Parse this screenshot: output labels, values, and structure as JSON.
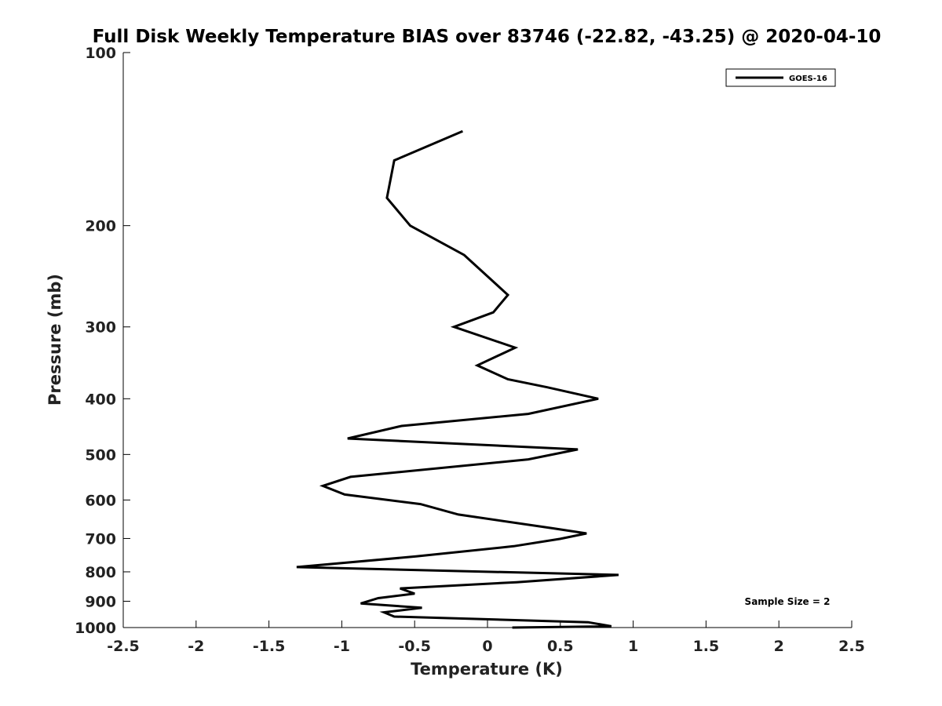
{
  "chart_data": {
    "type": "line",
    "title": "Full Disk Weekly Temperature BIAS over 83746 (-22.82, -43.25) @ 2020-04-10",
    "xlabel": "Temperature (K)",
    "ylabel": "Pressure (mb)",
    "xlim": [
      -2.5,
      2.5
    ],
    "ylim": [
      100,
      1000
    ],
    "y_scale": "log",
    "y_reversed": true,
    "grid": false,
    "legend_position": "top-right",
    "xticks": [
      -2.5,
      -2,
      -1.5,
      -1,
      -0.5,
      0,
      0.5,
      1,
      1.5,
      2,
      2.5
    ],
    "xtick_labels": [
      "-2.5",
      "-2",
      "-1.5",
      "-1",
      "-0.5",
      "0",
      "0.5",
      "1",
      "1.5",
      "2",
      "2.5"
    ],
    "yticks": [
      100,
      200,
      300,
      400,
      500,
      600,
      700,
      800,
      900,
      1000
    ],
    "ytick_labels": [
      "100",
      "200",
      "300",
      "400",
      "500",
      "600",
      "700",
      "800",
      "900",
      "1000"
    ],
    "annotation": "Sample Size = 2",
    "colors": {
      "line": "#000000",
      "axis": "#000000",
      "background": "#ffffff"
    },
    "series": [
      {
        "name": "GOES-16",
        "points": [
          [
            -0.17,
            137
          ],
          [
            -0.64,
            154
          ],
          [
            -0.69,
            179
          ],
          [
            -0.53,
            200
          ],
          [
            -0.16,
            225
          ],
          [
            0.14,
            264
          ],
          [
            0.04,
            283
          ],
          [
            -0.23,
            300
          ],
          [
            0.19,
            326
          ],
          [
            -0.07,
            350
          ],
          [
            0.14,
            370
          ],
          [
            0.41,
            382
          ],
          [
            0.76,
            400
          ],
          [
            0.28,
            425
          ],
          [
            -0.59,
            446
          ],
          [
            -0.96,
            469
          ],
          [
            0.62,
            490
          ],
          [
            0.28,
            510
          ],
          [
            -0.94,
            547
          ],
          [
            -1.13,
            567
          ],
          [
            -0.98,
            587
          ],
          [
            -0.46,
            610
          ],
          [
            -0.2,
            636
          ],
          [
            0.45,
            672
          ],
          [
            0.68,
            686
          ],
          [
            0.5,
            701
          ],
          [
            0.18,
            722
          ],
          [
            -0.49,
            752
          ],
          [
            -1.31,
            785
          ],
          [
            0.9,
            810
          ],
          [
            0.2,
            834
          ],
          [
            -0.6,
            855
          ],
          [
            -0.5,
            873
          ],
          [
            -0.75,
            889
          ],
          [
            -0.87,
            908
          ],
          [
            -0.45,
            924
          ],
          [
            -0.71,
            941
          ],
          [
            -0.64,
            957
          ],
          [
            0.69,
            979
          ],
          [
            0.85,
            995
          ],
          [
            0.17,
            1000
          ]
        ]
      }
    ]
  }
}
